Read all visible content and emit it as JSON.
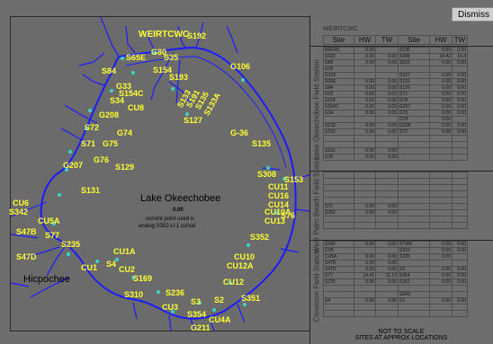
{
  "buttons": {
    "dismiss": "Dismiss"
  },
  "map": {
    "lake_name": "Lake Okeechobee",
    "center_value": "0.00",
    "note_line1": "current point used is",
    "note_line2": "analog S352-U-1 curval",
    "place": "Hicpochee",
    "colors": {
      "label": "#ffff33",
      "canal": "#1c1cff",
      "marker": "#35d7c6"
    },
    "stations": [
      "WEIRTCWC",
      "S192",
      "G80",
      "S35",
      "S84",
      "S65E",
      "S154",
      "S193",
      "G106",
      "S133",
      "S191",
      "S135",
      "S133A",
      "G33",
      "S154C",
      "S34",
      "CU8",
      "S127",
      "G208",
      "S72",
      "G74",
      "G75",
      "S71",
      "G76",
      "S129",
      "G207",
      "S131",
      "G-36",
      "S135",
      "S308",
      "S153",
      "CU11",
      "CU16",
      "CU14",
      "CU10A",
      "CU13",
      "S76",
      "CU6",
      "S342",
      "CU5A",
      "S47B",
      "S77",
      "S235",
      "S47D",
      "CU1A",
      "CU1",
      "S4",
      "CU2",
      "S169",
      "S352",
      "CU10",
      "CU12A",
      "CU12",
      "S310",
      "S236",
      "CU3",
      "S3",
      "S2",
      "S351",
      "S354",
      "CU4A",
      "G211"
    ]
  },
  "panel": {
    "title": "WEIRTCWC",
    "columns": [
      "Site",
      "HW",
      "TW",
      "Site",
      "HW",
      "TW"
    ],
    "sections": [
      {
        "label": "Lake Okeechobee Field Station",
        "rows": [
          [
            "WEIRS",
            "0.00",
            "",
            "S135",
            "0.00",
            "0.00"
          ],
          [
            "S192",
            "0.00",
            "0.00",
            "S308",
            "14.42",
            "14.4"
          ],
          [
            "G80",
            "0.00",
            "0.00",
            "S153",
            "0.00",
            "0.00"
          ],
          [
            "G35",
            "",
            "",
            "",
            "",
            ""
          ],
          [
            "G106",
            "",
            "",
            "S127",
            "0.00",
            "0.00"
          ],
          [
            "S65E",
            "0.00",
            "0.00",
            "S131",
            "0.00",
            "0.00"
          ],
          [
            "S84",
            "0.00",
            "0.00",
            "S129",
            "0.00",
            "0.00"
          ],
          [
            "G33",
            "0.00",
            "0.00",
            "S71",
            "0.00",
            "0.00"
          ],
          [
            "S154",
            "0.00",
            "0.00",
            "G76",
            "0.00",
            "0.00"
          ],
          [
            "S154C",
            "0.00",
            "0.00",
            "G207",
            "0.00",
            "0.00"
          ],
          [
            "G34",
            "0.00",
            "0.00",
            "G75",
            "0.00",
            "0.00"
          ],
          [
            "",
            "",
            "",
            "G74",
            "0.00",
            ""
          ],
          [
            "S133",
            "0.00",
            "0.00",
            "G208",
            "0.00",
            "0.00"
          ],
          [
            "S193",
            "0.00",
            "0.00",
            "S72",
            "0.00",
            "0.00"
          ],
          [
            "",
            "",
            "",
            "",
            "",
            ""
          ],
          [
            "",
            "",
            "",
            "",
            "",
            ""
          ],
          [
            "S191",
            "0.00",
            "0.00",
            "",
            "",
            ""
          ],
          [
            "G36",
            "0.00",
            "0.00",
            "",
            "",
            ""
          ]
        ]
      },
      {
        "label": "West Palm Beach Field Station",
        "rows": [
          [
            "",
            "",
            "",
            "",
            "",
            ""
          ],
          [
            "",
            "",
            "",
            "",
            "",
            ""
          ],
          [
            "",
            "",
            "",
            "",
            "",
            ""
          ],
          [
            "",
            "",
            "",
            "",
            "",
            ""
          ],
          [
            "",
            "",
            "",
            "",
            "",
            ""
          ],
          [
            "S76",
            "0.00",
            "0.00",
            "",
            "",
            ""
          ],
          [
            "S352",
            "0.00",
            "0.00",
            "",
            "",
            ""
          ],
          [
            "",
            "",
            "",
            "",
            "",
            ""
          ],
          [
            "",
            "",
            "",
            "",
            "",
            ""
          ]
        ]
      },
      {
        "label": "Clewiston Field Station",
        "rows": [
          [
            "S342",
            "0.00",
            "0.00",
            "S7WK",
            "0.00",
            "0.00"
          ],
          [
            "CV5",
            "",
            "",
            "S310",
            "0.00",
            "0.00"
          ],
          [
            "CU5A",
            "0.00",
            "0.00",
            "S236",
            "0.00",
            ""
          ],
          [
            "S47B",
            "0.00",
            "0.00",
            "",
            "",
            ""
          ],
          [
            "S47D",
            "0.00",
            "0.00",
            "S3",
            "0.00",
            "0.00"
          ],
          [
            "S77",
            "14.41",
            "11.19",
            "S354",
            "0.00",
            "0.00"
          ],
          [
            "S235",
            "0.00",
            "0.00",
            "S351",
            "0.00",
            "0.00"
          ],
          [
            "",
            "",
            "",
            "",
            "",
            ""
          ],
          [
            "",
            "",
            "",
            "S2A3",
            "",
            ""
          ],
          [
            "S4",
            "0.00",
            "0.00",
            "S2",
            "0.00",
            "0.00"
          ],
          [
            "",
            "",
            "",
            "",
            "",
            ""
          ],
          [
            "",
            "",
            "",
            "",
            "",
            ""
          ]
        ]
      }
    ],
    "footer_line1": "NOT TO SCALE",
    "footer_line2": "SITES AT APPROX LOCATIONS"
  }
}
